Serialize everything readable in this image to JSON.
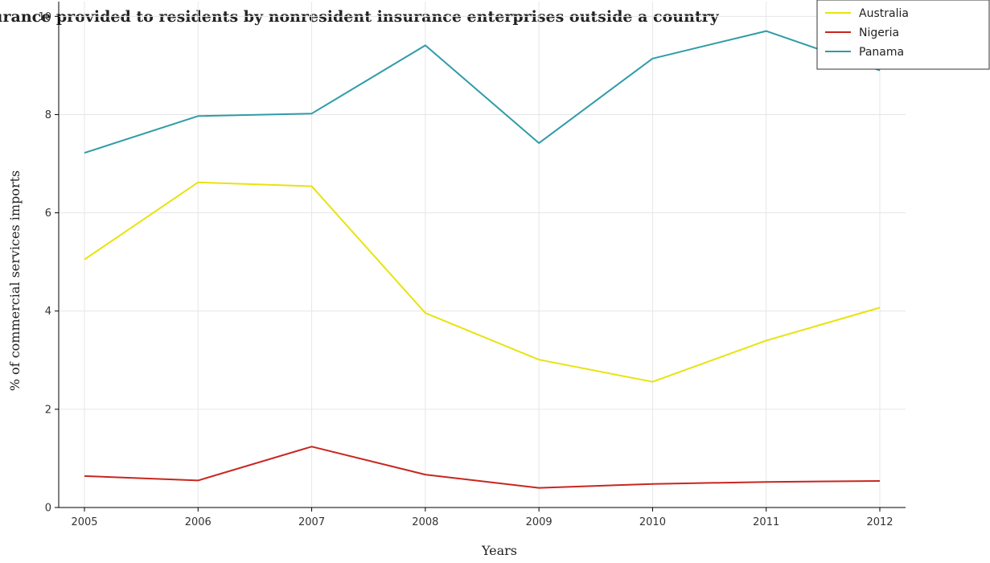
{
  "chart_data": {
    "type": "line",
    "title": "Insurance provided to residents by nonresident insurance enterprises outside a country",
    "xlabel": "Years",
    "ylabel": "% of commercial services imports",
    "categories": [
      "2005",
      "2006",
      "2007",
      "2008",
      "2009",
      "2010",
      "2011",
      "2012"
    ],
    "ylim": [
      0,
      10.3
    ],
    "yticks": [
      0,
      2,
      4,
      6,
      8,
      10
    ],
    "grid": true,
    "legend_position": "top-right",
    "series": [
      {
        "name": "Australia",
        "color": "#e8e30e",
        "values": [
          5.05,
          6.62,
          6.54,
          3.96,
          3.01,
          2.56,
          3.4,
          4.07
        ]
      },
      {
        "name": "Nigeria",
        "color": "#c8261f",
        "values": [
          0.64,
          0.55,
          1.24,
          0.67,
          0.4,
          0.48,
          0.52,
          0.54
        ]
      },
      {
        "name": "Panama",
        "color": "#2f9ca6",
        "values": [
          7.22,
          7.97,
          8.02,
          9.41,
          7.42,
          9.14,
          9.7,
          8.9
        ]
      }
    ]
  }
}
